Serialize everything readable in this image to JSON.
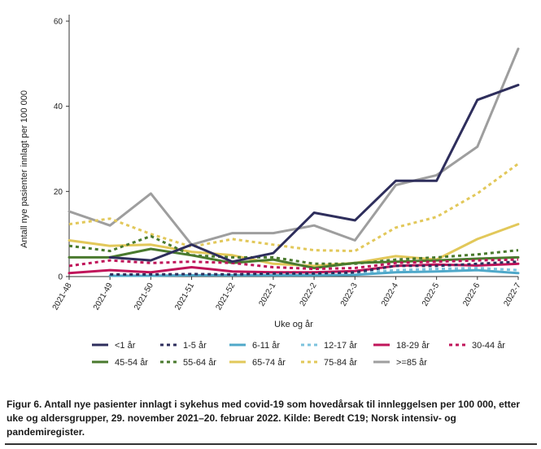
{
  "chart_data": {
    "type": "line",
    "title": "",
    "xlabel": "Uke og år",
    "ylabel": "Antall nye pasienter innlagt per 100 000",
    "ylim": [
      0,
      60
    ],
    "yticks": [
      0,
      20,
      40,
      60
    ],
    "grid": false,
    "legend_position": "bottom",
    "categories": [
      "2021-48",
      "2021-49",
      "2021-50",
      "2021-51",
      "2021-52",
      "2022-1",
      "2022-2",
      "2022-3",
      "2022-4",
      "2022-5",
      "2022-6",
      "2022-7"
    ],
    "series": [
      {
        "name": "<1 år",
        "color": "#2e2e5c",
        "dashed": false,
        "values": [
          null,
          4.5,
          3.8,
          7.5,
          3.5,
          5.5,
          15,
          13.2,
          22.5,
          22.5,
          41.5,
          45
        ]
      },
      {
        "name": "1-5 år",
        "color": "#2e2e5c",
        "dashed": true,
        "values": [
          null,
          0.5,
          0.5,
          0.6,
          0.5,
          0.7,
          0.7,
          1.0,
          2.5,
          2.5,
          3.0,
          3.5
        ]
      },
      {
        "name": "6-11 år",
        "color": "#4fa8c9",
        "dashed": false,
        "values": [
          null,
          0.2,
          0.2,
          0.3,
          0.3,
          0.3,
          0.3,
          0.4,
          1.0,
          1.2,
          1.5,
          0.8
        ]
      },
      {
        "name": "12-17 år",
        "color": "#7cc3dd",
        "dashed": true,
        "values": [
          null,
          0.4,
          0.4,
          0.5,
          0.5,
          0.5,
          0.6,
          0.8,
          1.5,
          1.8,
          2.0,
          1.5
        ]
      },
      {
        "name": "18-29 år",
        "color": "#c0155a",
        "dashed": false,
        "values": [
          0.8,
          1.5,
          1.0,
          2.2,
          1.2,
          1.0,
          1.0,
          1.3,
          2.5,
          2.8,
          2.6,
          3.0
        ]
      },
      {
        "name": "30-44 år",
        "color": "#c0155a",
        "dashed": true,
        "values": [
          2.5,
          3.8,
          3.2,
          3.5,
          3.2,
          2.2,
          1.8,
          2.0,
          3.2,
          3.5,
          3.8,
          4.0
        ]
      },
      {
        "name": "45-54 år",
        "color": "#4a7a2e",
        "dashed": false,
        "values": [
          4.5,
          4.5,
          6.5,
          5.0,
          3.2,
          4.0,
          2.0,
          3.2,
          3.5,
          3.8,
          4.2,
          4.5
        ]
      },
      {
        "name": "55-64 år",
        "color": "#4a7a2e",
        "dashed": true,
        "values": [
          7.2,
          6.0,
          9.5,
          5.0,
          4.5,
          4.5,
          3.0,
          3.0,
          4.0,
          4.5,
          5.2,
          6.2
        ]
      },
      {
        "name": "65-74 år",
        "color": "#e2c85a",
        "dashed": false,
        "values": [
          8.5,
          7.2,
          7.5,
          5.8,
          5.0,
          3.0,
          2.5,
          3.2,
          4.8,
          4.0,
          8.8,
          12.3
        ]
      },
      {
        "name": "75-84 år",
        "color": "#e2c85a",
        "dashed": true,
        "values": [
          12.3,
          13.6,
          10.0,
          7.0,
          8.8,
          7.5,
          6.2,
          6.0,
          11.5,
          14.0,
          19.5,
          26.5
        ]
      },
      {
        "name": ">=85 år",
        "color": "#9e9e9e",
        "dashed": false,
        "values": [
          15.3,
          12.0,
          19.5,
          7.5,
          10.2,
          10.2,
          12.0,
          8.5,
          21.5,
          23.8,
          30.5,
          53.5
        ]
      }
    ]
  },
  "caption": "Figur 6. Antall nye pasienter innlagt i sykehus med covid-19 som hovedårsak til innleggelsen per 100 000, etter uke og aldersgrupper, 29. november 2021–20. februar 2022. Kilde: Beredt C19; Norsk intensiv- og pandemiregister."
}
